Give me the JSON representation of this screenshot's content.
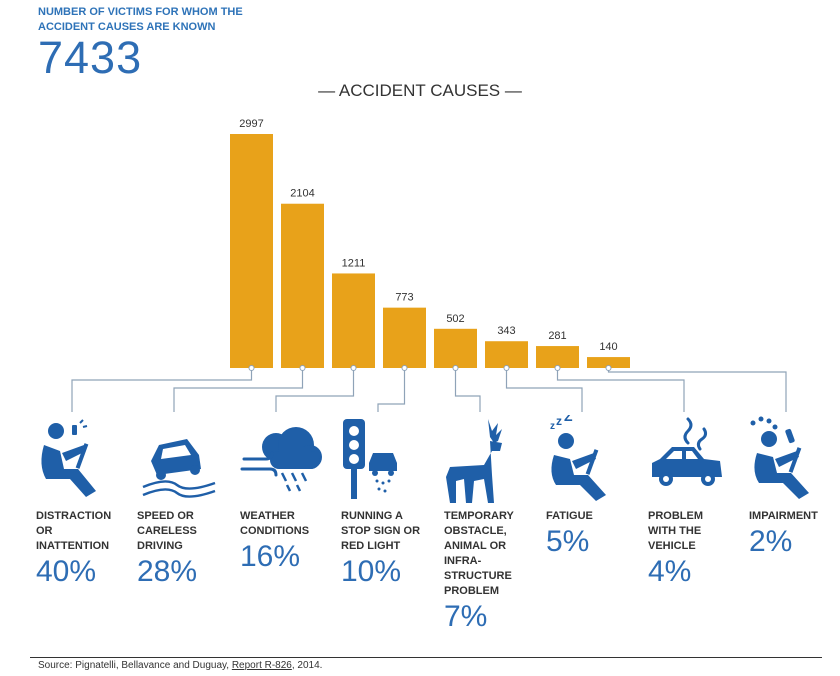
{
  "header": {
    "label": "NUMBER OF VICTIMS FOR WHOM THE ACCIDENT CAUSES ARE KNOWN",
    "total": "7433"
  },
  "chart_data": {
    "type": "bar",
    "title": "— ACCIDENT CAUSES —",
    "categories": [
      "DISTRACTION OR INATTENTION",
      "SPEED OR CARELESS DRIVING",
      "WEATHER CONDITIONS",
      "RUNNING A STOP SIGN OR RED LIGHT",
      "TEMPORARY OBSTACLE, ANIMAL OR INFRA-STRUCTURE PROBLEM",
      "FATIGUE",
      "PROBLEM WITH THE VEHICLE",
      "IMPAIRMENT"
    ],
    "values": [
      2997,
      2104,
      1211,
      773,
      502,
      343,
      281,
      140
    ],
    "value_labels": [
      "2997",
      "2104",
      "1211",
      "773",
      "502",
      "343",
      "281",
      "140"
    ],
    "percents": [
      "40%",
      "28%",
      "16%",
      "10%",
      "7%",
      "5%",
      "4%",
      "2%"
    ],
    "bar_color": "#e8a21a",
    "icon_color": "#1f5fa8",
    "connector_color": "#8fa3b8"
  },
  "categories_display": [
    {
      "label": "DISTRACTION\nOR\nINATTENTION",
      "pct": "40%",
      "icon": "distracted-driver-icon"
    },
    {
      "label": "SPEED OR\nCARELESS\nDRIVING",
      "pct": "28%",
      "icon": "skidding-car-icon"
    },
    {
      "label": "WEATHER\nCONDITIONS",
      "pct": "16%",
      "icon": "storm-cloud-icon"
    },
    {
      "label": "RUNNING A\nSTOP SIGN OR\nRED LIGHT",
      "pct": "10%",
      "icon": "traffic-light-icon"
    },
    {
      "label": "TEMPORARY\nOBSTACLE,\nANIMAL OR\nINFRA-\nSTRUCTURE\nPROBLEM",
      "pct": "7%",
      "icon": "deer-icon"
    },
    {
      "label": "FATIGUE",
      "pct": "5%",
      "icon": "tired-driver-icon"
    },
    {
      "label": "PROBLEM\nWITH THE\nVEHICLE",
      "pct": "4%",
      "icon": "smoking-car-icon"
    },
    {
      "label": "IMPAIRMENT",
      "pct": "2%",
      "icon": "impaired-driver-icon"
    }
  ],
  "footer": {
    "source": "Source: Pignatelli, Bellavance and Duguay,",
    "report": "Report R-826",
    "year": ", 2014."
  }
}
